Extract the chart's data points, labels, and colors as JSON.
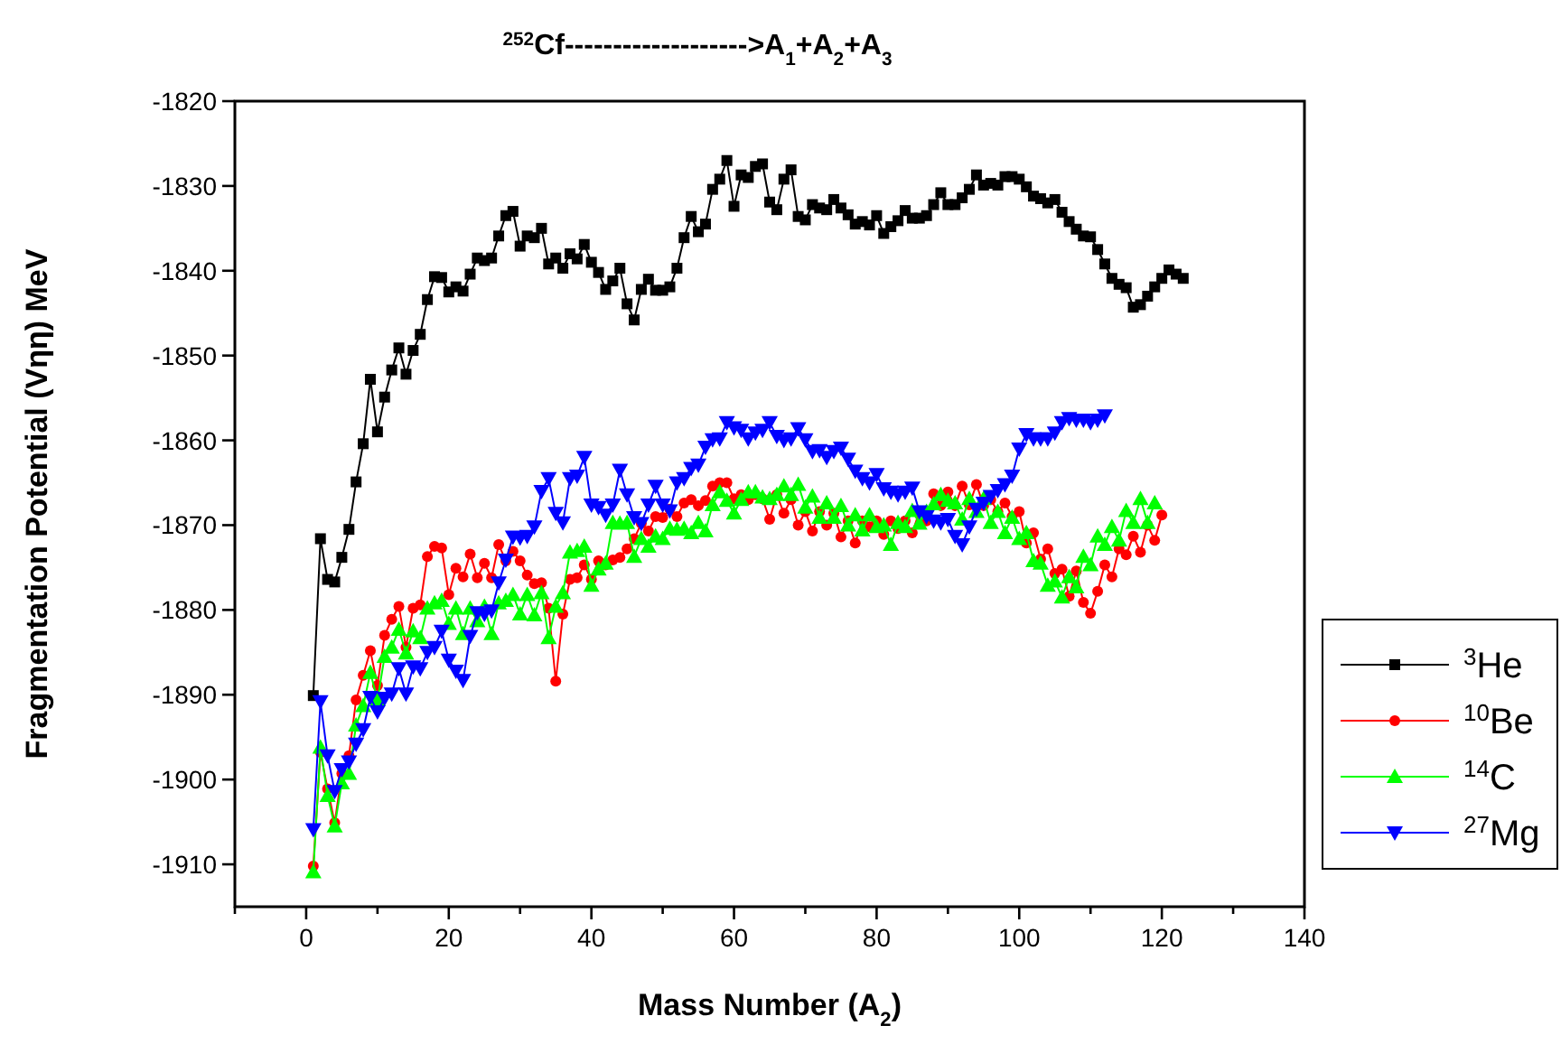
{
  "chart_data": {
    "type": "line",
    "title": "$^{252}$Cf------------------->A$_{1}$+A$_{2}$+A$_{3}$",
    "xlabel": "Mass Number (A$_{2}$)",
    "ylabel": "Fragmentation Potential (Vηη) MeV",
    "xlim": [
      -10,
      140
    ],
    "xticks": [
      {
        "value": -10,
        "label": null
      },
      0,
      {
        "value": 10,
        "label": null
      },
      20,
      {
        "value": 30,
        "label": null
      },
      40,
      {
        "value": 50,
        "label": null
      },
      60,
      {
        "value": 70,
        "label": null
      },
      80,
      {
        "value": 90,
        "label": null
      },
      100,
      {
        "value": 110,
        "label": null
      },
      120,
      {
        "value": 130,
        "label": null
      },
      140
    ],
    "ylim": [
      -1915,
      -1820
    ],
    "yticks": [
      -1910,
      -1900,
      -1890,
      -1880,
      -1870,
      -1860,
      -1850,
      -1840,
      -1830,
      -1820
    ],
    "grid": false,
    "legend": "right",
    "line_style": "solid",
    "x": [
      1,
      2,
      3,
      4,
      5,
      6,
      7,
      8,
      9,
      10,
      11,
      12,
      13,
      14,
      15,
      16,
      17,
      18,
      19,
      20,
      21,
      22,
      23,
      24,
      25,
      26,
      27,
      28,
      29,
      30,
      31,
      32,
      33,
      34,
      35,
      36,
      37,
      38,
      39,
      40,
      41,
      42,
      43,
      44,
      45,
      46,
      47,
      48,
      49,
      50,
      51,
      52,
      53,
      54,
      55,
      56,
      57,
      58,
      59,
      60,
      61,
      62,
      63,
      64,
      65,
      66,
      67,
      68,
      69,
      70,
      71,
      72,
      73,
      74,
      75,
      76,
      77,
      78,
      79,
      80,
      81,
      82,
      83,
      84,
      85,
      86,
      87,
      88,
      89,
      90,
      91,
      92,
      93,
      94,
      95,
      96,
      97,
      98,
      99,
      100,
      101,
      102,
      103,
      104,
      105,
      106,
      107,
      108,
      109,
      110,
      111,
      112,
      113,
      114,
      115,
      116,
      117,
      118,
      119,
      120,
      121,
      122,
      123
    ],
    "series": [
      {
        "name": "$^{3}$He",
        "color": "#000000",
        "marker": "square",
        "values": [
          -1890.1,
          -1871.6,
          -1876.4,
          -1876.7,
          -1873.8,
          -1870.5,
          -1864.9,
          -1860.4,
          -1852.8,
          -1859,
          -1854.9,
          -1851.7,
          -1849.1,
          -1852.2,
          -1849.4,
          -1847.5,
          -1843.4,
          -1840.7,
          -1840.8,
          -1842.5,
          -1841.9,
          -1842.4,
          -1840.4,
          -1838.5,
          -1838.8,
          -1838.5,
          -1835.9,
          -1833.5,
          -1833,
          -1837.1,
          -1835.9,
          -1836.1,
          -1835,
          -1839.2,
          -1838.5,
          -1839.7,
          -1838,
          -1838.6,
          -1836.9,
          -1839,
          -1840.2,
          -1842.2,
          -1841.2,
          -1839.7,
          -1843.9,
          -1845.8,
          -1842.2,
          -1841,
          -1842.3,
          -1842.3,
          -1841.9,
          -1839.7,
          -1836.1,
          -1833.6,
          -1835.4,
          -1834.5,
          -1830.4,
          -1829.2,
          -1827,
          -1832.4,
          -1828.7,
          -1829,
          -1827.7,
          -1827.4,
          -1831.9,
          -1832.8,
          -1829.2,
          -1828.1,
          -1833.6,
          -1834,
          -1832.2,
          -1832.6,
          -1832.8,
          -1831.6,
          -1832.6,
          -1833.4,
          -1834.5,
          -1834.2,
          -1834.6,
          -1833.5,
          -1835.6,
          -1834.8,
          -1834.1,
          -1832.9,
          -1833.8,
          -1833.8,
          -1833.5,
          -1832.2,
          -1830.8,
          -1832.2,
          -1832.2,
          -1831.4,
          -1830.4,
          -1828.7,
          -1829.9,
          -1829.7,
          -1829.9,
          -1828.9,
          -1828.9,
          -1829.2,
          -1830.1,
          -1831.2,
          -1831.5,
          -1832,
          -1831.6,
          -1833.1,
          -1834.2,
          -1835.1,
          -1835.9,
          -1836,
          -1837.5,
          -1839.2,
          -1840.9,
          -1841.6,
          -1842,
          -1844.3,
          -1844,
          -1843,
          -1841.9,
          -1840.9,
          -1839.9,
          -1840.4,
          -1840.9
        ]
      },
      {
        "name": "$^{10}$Be",
        "color": "#ff0000",
        "marker": "circle",
        "values": [
          -1910.2,
          -1896.8,
          -1901.1,
          -1905.1,
          -1899.3,
          -1897.2,
          -1890.6,
          -1887.7,
          -1884.8,
          -1888.9,
          -1883,
          -1881.1,
          -1879.6,
          -1884.4,
          -1879.8,
          -1879.4,
          -1873.7,
          -1872.5,
          -1872.7,
          -1878.2,
          -1875.1,
          -1876.1,
          -1873.4,
          -1876.2,
          -1874.5,
          -1876.2,
          -1872.3,
          -1874.2,
          -1873.1,
          -1874.2,
          -1875.9,
          -1876.9,
          -1876.8,
          -1879.8,
          -1888.4,
          -1880.5,
          -1876.4,
          -1876.2,
          -1874.7,
          -1876.4,
          -1874.2,
          -1874.7,
          -1874.1,
          -1873.8,
          -1872.8,
          -1871.6,
          -1869.8,
          -1870.7,
          -1869,
          -1869.1,
          -1868.1,
          -1869,
          -1867.4,
          -1867,
          -1867.7,
          -1867.1,
          -1865.4,
          -1865,
          -1865,
          -1866.9,
          -1866.4,
          -1867,
          -1866.4,
          -1866.9,
          -1869.3,
          -1866.4,
          -1868.6,
          -1867,
          -1870,
          -1868.4,
          -1870.7,
          -1868.4,
          -1870,
          -1868.6,
          -1871.4,
          -1869.5,
          -1872.1,
          -1869.5,
          -1870.2,
          -1869.5,
          -1871.1,
          -1869.5,
          -1870.4,
          -1869.5,
          -1870.9,
          -1868.4,
          -1869.5,
          -1866.3,
          -1867.7,
          -1866.1,
          -1867.7,
          -1865.4,
          -1867.6,
          -1865.2,
          -1867.7,
          -1867,
          -1868.4,
          -1867.4,
          -1869,
          -1868.4,
          -1872.1,
          -1870.9,
          -1874,
          -1872.8,
          -1875.7,
          -1875.2,
          -1878.4,
          -1875.4,
          -1879.1,
          -1880.4,
          -1877.8,
          -1874.7,
          -1876.1,
          -1872.8,
          -1873.5,
          -1871.3,
          -1873.2,
          -1870,
          -1871.8,
          -1868.8,
          null,
          null,
          null
        ]
      },
      {
        "name": "$^{14}$C",
        "color": "#00ff00",
        "marker": "triangle",
        "values": [
          -1910.9,
          -1896.2,
          -1901.9,
          -1905.5,
          -1900.4,
          -1899.3,
          -1893.6,
          -1891.3,
          -1887.4,
          -1890.6,
          -1885.5,
          -1884.4,
          -1882.3,
          -1885.1,
          -1882.5,
          -1883.3,
          -1879.8,
          -1879.2,
          -1878.9,
          -1881.6,
          -1879.8,
          -1882.8,
          -1879.8,
          -1881.3,
          -1879.6,
          -1882.8,
          -1879.2,
          -1878.9,
          -1878.2,
          -1880.5,
          -1878.2,
          -1880.6,
          -1878,
          -1883.3,
          -1879.6,
          -1878,
          -1873.2,
          -1873,
          -1872.5,
          -1877.1,
          -1875.2,
          -1874.5,
          -1869.7,
          -1869.8,
          -1869.7,
          -1873.7,
          -1871.6,
          -1872.5,
          -1871.3,
          -1871.6,
          -1870.4,
          -1870.5,
          -1870.4,
          -1870.9,
          -1869.7,
          -1870.7,
          -1867.6,
          -1866.1,
          -1867.1,
          -1868.6,
          -1867,
          -1866.1,
          -1866.1,
          -1866.7,
          -1866.9,
          -1866.4,
          -1865.4,
          -1866.4,
          -1865.2,
          -1867.9,
          -1866.6,
          -1869.1,
          -1867.4,
          -1869.1,
          -1867.7,
          -1870,
          -1868.8,
          -1870.6,
          -1868.8,
          -1870.2,
          -1870,
          -1872.3,
          -1869.7,
          -1870.2,
          -1868.3,
          -1869.8,
          -1868.4,
          -1867.5,
          -1866.4,
          -1867.1,
          -1867.4,
          -1869.3,
          -1866.9,
          -1868.4,
          -1866.9,
          -1869.7,
          -1868.4,
          -1870.9,
          -1869.1,
          -1871.6,
          -1870.9,
          -1874.2,
          -1874.5,
          -1877.1,
          -1876.6,
          -1878.5,
          -1876.1,
          -1877.3,
          -1873.7,
          -1874.7,
          -1871.3,
          -1872.3,
          -1870.2,
          -1871.8,
          -1868.3,
          -1869.7,
          -1866.9,
          -1869.7,
          -1867.4,
          null,
          null,
          null,
          null
        ]
      },
      {
        "name": "$^{27}$Mg",
        "color": "#0000ff",
        "marker": "triangle-down",
        "values": [
          -1905.9,
          -1890.8,
          -1897.2,
          -1901.4,
          -1898.8,
          -1897.9,
          -1895.8,
          -1894.1,
          -1890.3,
          -1892,
          -1890.4,
          -1889.9,
          -1886.9,
          -1889.9,
          -1886.7,
          -1886.9,
          -1885,
          -1884.4,
          -1882.5,
          -1885.9,
          -1887.2,
          -1888.3,
          -1883.1,
          -1880.3,
          -1880.5,
          -1880.1,
          -1876.8,
          -1874.1,
          -1871.4,
          -1871.5,
          -1871.3,
          -1870.2,
          -1866,
          -1864.5,
          -1868.6,
          -1869.7,
          -1864.5,
          -1864.2,
          -1862,
          -1867.6,
          -1867.9,
          -1868.8,
          -1867.6,
          -1863.5,
          -1866.4,
          -1869.1,
          -1869.8,
          -1867.6,
          -1865.4,
          -1867.6,
          -1868.3,
          -1865,
          -1864.5,
          -1863.3,
          -1862.9,
          -1860.8,
          -1859.9,
          -1859.8,
          -1857.9,
          -1858.5,
          -1858.8,
          -1859.8,
          -1859.1,
          -1858.8,
          -1857.9,
          -1859.5,
          -1860,
          -1859.8,
          -1858.6,
          -1859.9,
          -1861.3,
          -1861.2,
          -1862,
          -1861.3,
          -1860.9,
          -1862.2,
          -1863.6,
          -1864.5,
          -1865,
          -1864,
          -1865.7,
          -1866.1,
          -1866.4,
          -1866.1,
          -1865.6,
          -1868.4,
          -1869,
          -1869.5,
          -1869.7,
          -1869.3,
          -1871.3,
          -1872.3,
          -1870.2,
          -1868.1,
          -1867.4,
          -1866.6,
          -1865.9,
          -1865.2,
          -1864.2,
          -1861,
          -1859.3,
          -1859.8,
          -1859.8,
          -1859.8,
          -1859.1,
          -1857.9,
          -1857.4,
          -1857.6,
          -1857.6,
          -1857.9,
          -1857.6,
          -1857.1,
          null,
          null,
          null,
          null,
          null,
          null,
          null,
          null,
          null,
          null,
          null
        ]
      }
    ]
  }
}
